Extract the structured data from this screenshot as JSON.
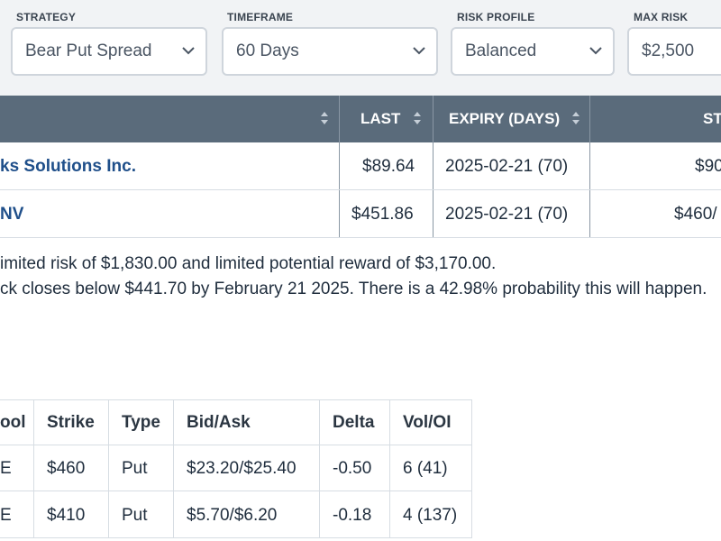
{
  "filters": {
    "strategy": {
      "label": "STRATEGY",
      "value": "Bear Put Spread"
    },
    "timeframe": {
      "label": "TIMEFRAME",
      "value": "60 Days"
    },
    "risk_profile": {
      "label": "RISK PROFILE",
      "value": "Balanced"
    },
    "max_risk": {
      "label": "MAX RISK",
      "value": "$2,500"
    }
  },
  "results_table": {
    "headers": {
      "last": "LAST",
      "expiry": "EXPIRY (DAYS)",
      "strikes": "ST"
    },
    "rows": [
      {
        "name": "ks Solutions Inc.",
        "last": "$89.64",
        "expiry": "2025-02-21 (70)",
        "strikes": "$90"
      },
      {
        "name": "NV",
        "last": "$451.86",
        "expiry": "2025-02-21 (70)",
        "strikes": "$460/"
      }
    ]
  },
  "description": {
    "line1": "imited risk of $1,830.00 and limited potential reward of $3,170.00.",
    "line2": "ck closes below $441.70 by February 21 2025. There is a 42.98% probability this will happen."
  },
  "legs_table": {
    "headers": {
      "symbol": "ool",
      "strike": "Strike",
      "type": "Type",
      "bidask": "Bid/Ask",
      "delta": "Delta",
      "voloi": "Vol/OI"
    },
    "rows": [
      {
        "symbol": "E",
        "strike": "$460",
        "type": "Put",
        "bidask": "$23.20/$25.40",
        "delta": "-0.50",
        "voloi": "6 (41)"
      },
      {
        "symbol": "E",
        "strike": "$410",
        "type": "Put",
        "bidask": "$5.70/$6.20",
        "delta": "-0.18",
        "voloi": "4 (137)"
      }
    ]
  },
  "icons": [
    "chevron-down-icon",
    "sort-icon"
  ],
  "colors": {
    "header_bg": "#5a6b7b",
    "link": "#1f4f8a",
    "filter_bg": "#f1f3f5"
  }
}
